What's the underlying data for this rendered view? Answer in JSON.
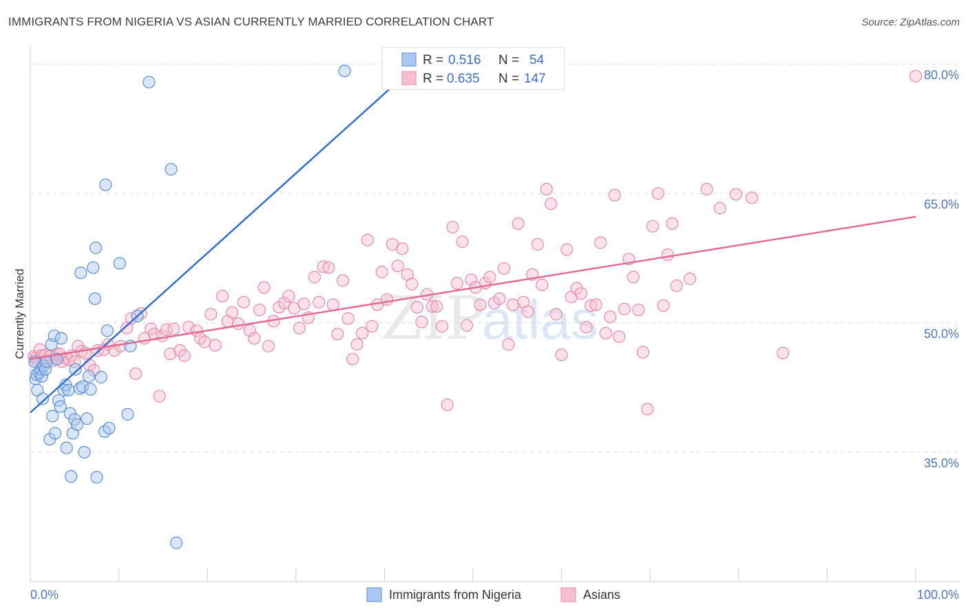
{
  "title": "IMMIGRANTS FROM NIGERIA VS ASIAN CURRENTLY MARRIED CORRELATION CHART",
  "source": "Source: ZipAtlas.com",
  "watermark": {
    "zip": "ZIP",
    "atlas": "atlas"
  },
  "colors": {
    "blue_fill": "#aac8ef",
    "blue_stroke": "#5b8fd6",
    "blue_line": "#2d6fd2",
    "pink_fill": "#f6bfd0",
    "pink_stroke": "#e88aa8",
    "pink_line": "#e26a93",
    "grid": "#dddddd",
    "tick_label": "#4a78c8"
  },
  "legend": {
    "rows": [
      {
        "r_label": "R =",
        "r_value": "0.516",
        "n_label": "N =",
        "n_value": "54"
      },
      {
        "r_label": "R =",
        "r_value": "0.635",
        "n_label": "N =",
        "n_value": "147"
      }
    ]
  },
  "chart_data": {
    "type": "scatter",
    "xlabel": "",
    "ylabel": "Currently Married",
    "xlim": [
      0,
      100
    ],
    "ylim": [
      20,
      82
    ],
    "x_tick_labels": [
      "0.0%",
      "100.0%"
    ],
    "y_ticks": [
      35,
      50,
      65,
      80
    ],
    "y_tick_labels": [
      "35.0%",
      "50.0%",
      "65.0%",
      "80.0%"
    ],
    "series": [
      {
        "name": "Immigrants from Nigeria",
        "color": "blue",
        "R": 0.516,
        "N": 54,
        "trend": {
          "x0": 0,
          "y0": 39.6,
          "x1": 41,
          "y1": 77.5
        },
        "points": [
          [
            0.5,
            45.5
          ],
          [
            0.6,
            43.5
          ],
          [
            0.7,
            44
          ],
          [
            0.8,
            42.2
          ],
          [
            1.0,
            44.2
          ],
          [
            1.2,
            44.6
          ],
          [
            1.3,
            43.8
          ],
          [
            1.4,
            41.2
          ],
          [
            1.5,
            45
          ],
          [
            1.7,
            44.6
          ],
          [
            1.8,
            45.5
          ],
          [
            2.2,
            36.5
          ],
          [
            2.4,
            47.5
          ],
          [
            2.5,
            39.2
          ],
          [
            2.7,
            48.5
          ],
          [
            2.8,
            37.2
          ],
          [
            3.0,
            45.8
          ],
          [
            3.2,
            41
          ],
          [
            3.4,
            40.3
          ],
          [
            3.5,
            48.2
          ],
          [
            3.8,
            42.2
          ],
          [
            4.0,
            42.8
          ],
          [
            4.1,
            35.5
          ],
          [
            4.3,
            42.2
          ],
          [
            4.5,
            39.5
          ],
          [
            4.6,
            32.2
          ],
          [
            4.8,
            37.2
          ],
          [
            5.0,
            38.8
          ],
          [
            5.1,
            44.6
          ],
          [
            5.3,
            38.2
          ],
          [
            5.6,
            42.4
          ],
          [
            5.7,
            55.8
          ],
          [
            5.9,
            42.6
          ],
          [
            6.1,
            35
          ],
          [
            6.4,
            38.9
          ],
          [
            6.6,
            43.8
          ],
          [
            6.8,
            42.3
          ],
          [
            7.1,
            56.4
          ],
          [
            7.3,
            52.8
          ],
          [
            7.4,
            58.7
          ],
          [
            7.5,
            32.1
          ],
          [
            8.0,
            43.7
          ],
          [
            8.4,
            37.4
          ],
          [
            8.5,
            66
          ],
          [
            8.7,
            49.1
          ],
          [
            8.9,
            37.8
          ],
          [
            10.1,
            56.9
          ],
          [
            11.0,
            39.4
          ],
          [
            11.3,
            47.3
          ],
          [
            12.1,
            50.8
          ],
          [
            13.4,
            77.9
          ],
          [
            15.9,
            67.8
          ],
          [
            16.5,
            24.5
          ],
          [
            35.5,
            79.2
          ]
        ]
      },
      {
        "name": "Asians",
        "color": "pink",
        "R": 0.635,
        "N": 147,
        "trend": {
          "x0": 0,
          "y0": 45.8,
          "x1": 100,
          "y1": 62.3
        },
        "points": [
          [
            0.4,
            46.1
          ],
          [
            0.6,
            45.9
          ],
          [
            0.8,
            45.6
          ],
          [
            1.1,
            46.9
          ],
          [
            1.3,
            46.2
          ],
          [
            1.5,
            45.4
          ],
          [
            1.7,
            46.3
          ],
          [
            1.9,
            45.6
          ],
          [
            2.2,
            46.1
          ],
          [
            2.5,
            45.6
          ],
          [
            2.8,
            46
          ],
          [
            3.0,
            46.3
          ],
          [
            3.3,
            46.4
          ],
          [
            3.6,
            45.5
          ],
          [
            4.0,
            45.9
          ],
          [
            4.4,
            45.7
          ],
          [
            4.7,
            46.2
          ],
          [
            5.0,
            45.5
          ],
          [
            5.4,
            47.3
          ],
          [
            5.8,
            46.7
          ],
          [
            6.2,
            46.5
          ],
          [
            6.7,
            45.1
          ],
          [
            7.2,
            44.5
          ],
          [
            7.6,
            46.8
          ],
          [
            8.3,
            46.9
          ],
          [
            8.8,
            47.5
          ],
          [
            9.5,
            46.8
          ],
          [
            10.2,
            47.3
          ],
          [
            10.9,
            49.4
          ],
          [
            11.4,
            50.5
          ],
          [
            11.9,
            44.1
          ],
          [
            12.5,
            51.1
          ],
          [
            12.9,
            48.2
          ],
          [
            13.6,
            49.3
          ],
          [
            14.0,
            48.7
          ],
          [
            14.6,
            41.5
          ],
          [
            14.9,
            48.5
          ],
          [
            15.4,
            49.2
          ],
          [
            15.8,
            46.4
          ],
          [
            16.2,
            49.3
          ],
          [
            16.9,
            46.8
          ],
          [
            17.4,
            46.2
          ],
          [
            17.9,
            49.5
          ],
          [
            18.8,
            49.1
          ],
          [
            19.2,
            48.2
          ],
          [
            19.7,
            47.8
          ],
          [
            20.4,
            51
          ],
          [
            20.9,
            47.4
          ],
          [
            21.7,
            53.1
          ],
          [
            22.3,
            50.2
          ],
          [
            22.8,
            51.2
          ],
          [
            23.5,
            49.9
          ],
          [
            24.1,
            52.4
          ],
          [
            24.8,
            49.1
          ],
          [
            25.3,
            48.2
          ],
          [
            25.9,
            51.5
          ],
          [
            26.4,
            54.1
          ],
          [
            26.9,
            47.3
          ],
          [
            27.5,
            50.2
          ],
          [
            28.1,
            51.8
          ],
          [
            28.7,
            52.3
          ],
          [
            29.2,
            53.1
          ],
          [
            29.8,
            51.7
          ],
          [
            30.4,
            49.4
          ],
          [
            30.9,
            52.2
          ],
          [
            31.4,
            50.6
          ],
          [
            32.1,
            55.3
          ],
          [
            32.6,
            52.4
          ],
          [
            33.1,
            56.5
          ],
          [
            33.7,
            56.4
          ],
          [
            34.2,
            52.1
          ],
          [
            34.7,
            48.7
          ],
          [
            35.3,
            54.9
          ],
          [
            35.9,
            50.5
          ],
          [
            36.4,
            45.8
          ],
          [
            36.9,
            47.5
          ],
          [
            37.5,
            48.8
          ],
          [
            38.1,
            59.6
          ],
          [
            38.6,
            49.6
          ],
          [
            39.2,
            52.1
          ],
          [
            39.7,
            55.9
          ],
          [
            40.3,
            52.7
          ],
          [
            40.9,
            59.1
          ],
          [
            41.5,
            56.6
          ],
          [
            42.0,
            58.6
          ],
          [
            42.6,
            55.6
          ],
          [
            43.1,
            54.5
          ],
          [
            43.7,
            51.8
          ],
          [
            44.2,
            50.1
          ],
          [
            44.8,
            53.3
          ],
          [
            45.4,
            51.9
          ],
          [
            45.9,
            51.9
          ],
          [
            46.5,
            49.6
          ],
          [
            47.1,
            40.5
          ],
          [
            47.7,
            61.1
          ],
          [
            48.2,
            54.6
          ],
          [
            48.8,
            59.4
          ],
          [
            49.3,
            49.7
          ],
          [
            49.8,
            55
          ],
          [
            50.3,
            54.1
          ],
          [
            50.8,
            52.1
          ],
          [
            51.4,
            54.6
          ],
          [
            51.9,
            55.3
          ],
          [
            52.4,
            52.3
          ],
          [
            53.0,
            52.8
          ],
          [
            53.5,
            56.3
          ],
          [
            54.0,
            47.5
          ],
          [
            54.5,
            52.1
          ],
          [
            55.1,
            61.5
          ],
          [
            55.7,
            52.4
          ],
          [
            56.2,
            51.3
          ],
          [
            56.7,
            55.6
          ],
          [
            57.3,
            59.1
          ],
          [
            57.8,
            54.4
          ],
          [
            58.3,
            65.5
          ],
          [
            58.8,
            63.8
          ],
          [
            59.4,
            51
          ],
          [
            60.0,
            46.3
          ],
          [
            60.6,
            58.5
          ],
          [
            61.1,
            53
          ],
          [
            61.7,
            54
          ],
          [
            62.2,
            53.4
          ],
          [
            62.8,
            49.5
          ],
          [
            63.3,
            52
          ],
          [
            63.9,
            52.1
          ],
          [
            64.4,
            59.3
          ],
          [
            65.0,
            48.8
          ],
          [
            65.5,
            50.7
          ],
          [
            66.0,
            64.8
          ],
          [
            66.5,
            48.4
          ],
          [
            67.1,
            51.6
          ],
          [
            67.6,
            57.4
          ],
          [
            68.1,
            55.3
          ],
          [
            68.7,
            51.5
          ],
          [
            69.2,
            46.6
          ],
          [
            69.7,
            40
          ],
          [
            70.3,
            61.2
          ],
          [
            70.9,
            65
          ],
          [
            71.5,
            52
          ],
          [
            72.0,
            57.9
          ],
          [
            72.5,
            61.5
          ],
          [
            73.0,
            54.3
          ],
          [
            74.5,
            55.1
          ],
          [
            76.4,
            65.5
          ],
          [
            77.9,
            63.3
          ],
          [
            79.7,
            64.9
          ],
          [
            81.5,
            64.5
          ],
          [
            85.0,
            46.5
          ],
          [
            100.0,
            78.6
          ]
        ]
      }
    ]
  },
  "bottom_legend": [
    "Immigrants from Nigeria",
    "Asians"
  ]
}
